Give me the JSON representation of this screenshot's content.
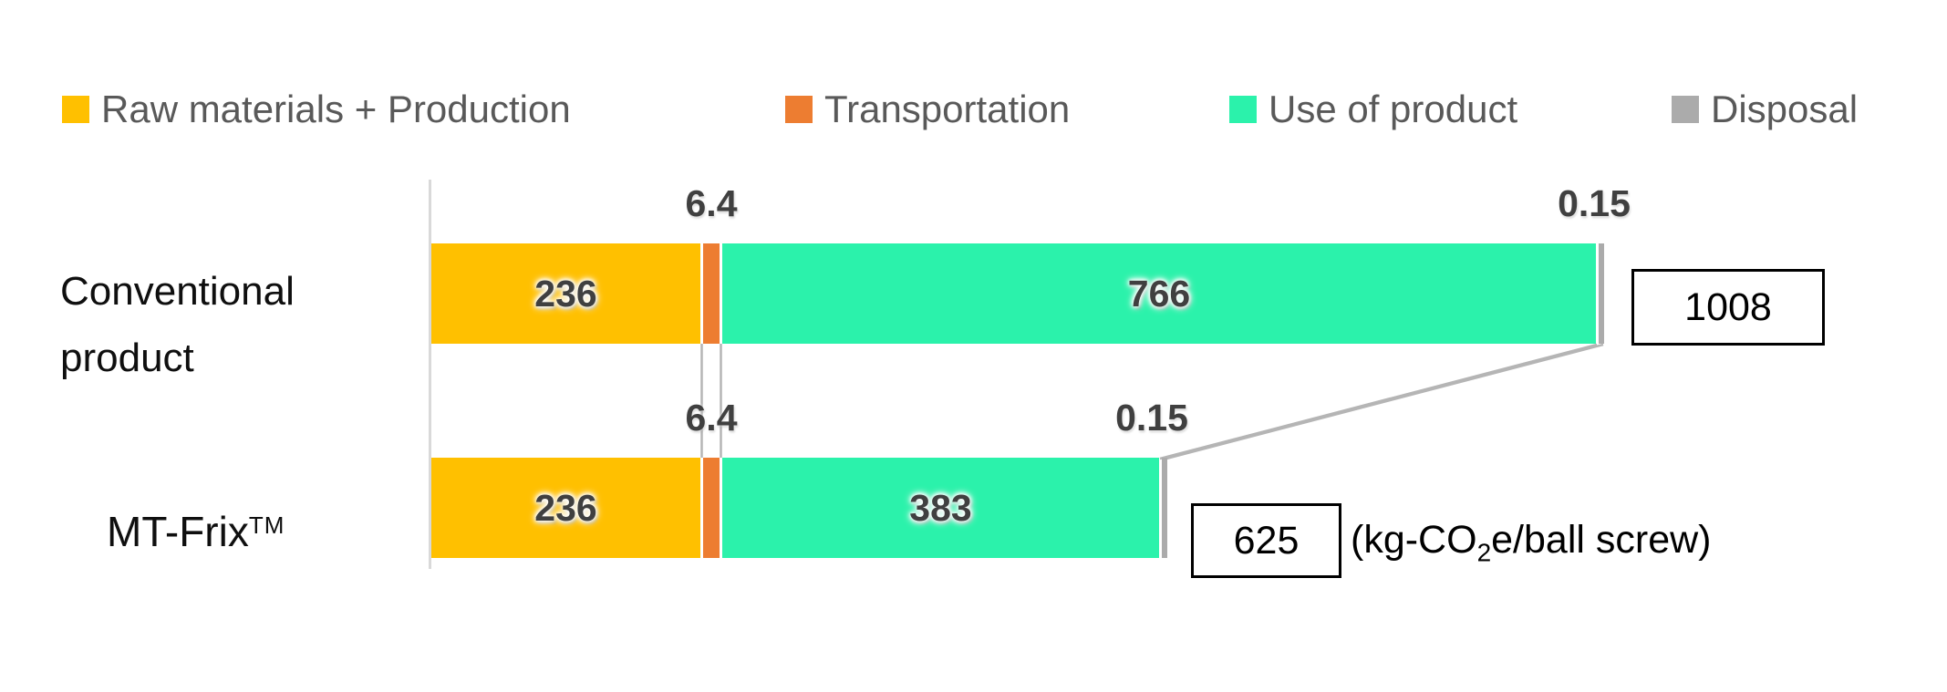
{
  "legend": {
    "items": [
      {
        "label": "Raw materials + Production",
        "color": "#FFC000"
      },
      {
        "label": "Transportation",
        "color": "#ED7D31"
      },
      {
        "label": "Use of product",
        "color": "#2BF2AB"
      },
      {
        "label": "Disposal",
        "color": "#ABABAB"
      }
    ]
  },
  "rows": [
    {
      "label_line1": "Conventional",
      "label_line2": "product"
    },
    {
      "label_base": "MT-Frix",
      "label_sup": "TM"
    }
  ],
  "unit_label": {
    "prefix": "(kg-CO",
    "sub": "2",
    "suffix": "e/ball screw)"
  },
  "chart_data": {
    "type": "bar",
    "orientation": "horizontal",
    "stacked": true,
    "title": "",
    "xlabel": "",
    "ylabel": "",
    "unit": "kg-CO2e/ball screw",
    "categories": [
      "Conventional product",
      "MT-Frix TM"
    ],
    "series": [
      {
        "name": "Raw materials + Production",
        "color": "#FFC000",
        "values": [
          236,
          236
        ]
      },
      {
        "name": "Transportation",
        "color": "#ED7D31",
        "values": [
          6.4,
          6.4
        ]
      },
      {
        "name": "Use of product",
        "color": "#2BF2AB",
        "values": [
          766,
          383
        ]
      },
      {
        "name": "Disposal",
        "color": "#ABABAB",
        "values": [
          0.15,
          0.15
        ]
      }
    ],
    "totals": [
      1008,
      625
    ],
    "legend_position": "top",
    "grid": false,
    "xlim": [
      0,
      1100
    ],
    "notes": "Transportation and Disposal slivers drawn wider than scale for visibility; gray connector lines link segment boundaries between bars"
  }
}
